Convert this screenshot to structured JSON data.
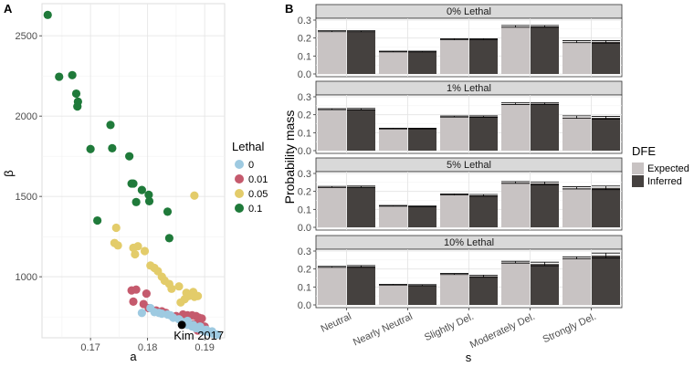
{
  "chart_data": [
    {
      "panel_label": "A",
      "type": "scatter",
      "xlabel": "a",
      "ylabel": "β",
      "xlim": [
        0.1615,
        0.1935
      ],
      "ylim": [
        620,
        2700
      ],
      "x_ticks": [
        0.17,
        0.18,
        0.19
      ],
      "x_tick_labels": [
        "0.17",
        "0.18",
        "0.19"
      ],
      "y_ticks": [
        1000,
        1500,
        2000,
        2500
      ],
      "y_tick_labels": [
        "1000",
        "1500",
        "2000",
        "2500"
      ],
      "grid": true,
      "legend": {
        "title": "Lethal",
        "placement": "right",
        "entries": [
          {
            "label": "0",
            "color": "#9ecae1"
          },
          {
            "label": "0.01",
            "color": "#c55a6d"
          },
          {
            "label": "0.05",
            "color": "#e3cc6a"
          },
          {
            "label": "0.1",
            "color": "#1f7a3a"
          }
        ]
      },
      "series": [
        {
          "name": "0.1",
          "color": "#1f7a3a",
          "points": [
            [
              0.1625,
              2630
            ],
            [
              0.1645,
              2245
            ],
            [
              0.1668,
              2255
            ],
            [
              0.1675,
              2140
            ],
            [
              0.1678,
              2090
            ],
            [
              0.1677,
              2060
            ],
            [
              0.17,
              1795
            ],
            [
              0.1735,
              1945
            ],
            [
              0.1738,
              1800
            ],
            [
              0.1768,
              1750
            ],
            [
              0.1772,
              1580
            ],
            [
              0.1775,
              1580
            ],
            [
              0.178,
              1465
            ],
            [
              0.179,
              1540
            ],
            [
              0.1802,
              1510
            ],
            [
              0.1803,
              1470
            ],
            [
              0.1835,
              1405
            ],
            [
              0.1838,
              1240
            ],
            [
              0.1712,
              1350
            ]
          ]
        },
        {
          "name": "0.05",
          "color": "#e3cc6a",
          "points": [
            [
              0.1745,
              1305
            ],
            [
              0.1742,
              1210
            ],
            [
              0.1748,
              1195
            ],
            [
              0.1775,
              1180
            ],
            [
              0.1783,
              1190
            ],
            [
              0.1778,
              1140
            ],
            [
              0.1795,
              1160
            ],
            [
              0.1805,
              1070
            ],
            [
              0.1812,
              1055
            ],
            [
              0.1818,
              1035
            ],
            [
              0.1825,
              1000
            ],
            [
              0.183,
              975
            ],
            [
              0.1838,
              955
            ],
            [
              0.1842,
              925
            ],
            [
              0.1855,
              940
            ],
            [
              0.1868,
              900
            ],
            [
              0.1872,
              880
            ],
            [
              0.188,
              905
            ],
            [
              0.1882,
              875
            ],
            [
              0.1888,
              880
            ],
            [
              0.1865,
              860
            ],
            [
              0.1858,
              840
            ],
            [
              0.1882,
              1505
            ]
          ]
        },
        {
          "name": "0.01",
          "color": "#c55a6d",
          "points": [
            [
              0.1772,
              915
            ],
            [
              0.178,
              920
            ],
            [
              0.1775,
              845
            ],
            [
              0.1793,
              830
            ],
            [
              0.1798,
              895
            ],
            [
              0.1802,
              805
            ],
            [
              0.1815,
              790
            ],
            [
              0.1825,
              785
            ],
            [
              0.1832,
              775
            ],
            [
              0.185,
              755
            ],
            [
              0.1862,
              765
            ],
            [
              0.187,
              760
            ],
            [
              0.1878,
              760
            ],
            [
              0.1885,
              755
            ],
            [
              0.189,
              745
            ],
            [
              0.1895,
              740
            ],
            [
              0.1888,
              710
            ],
            [
              0.188,
              705
            ],
            [
              0.1892,
              705
            ],
            [
              0.1885,
              690
            ],
            [
              0.19,
              690
            ],
            [
              0.1898,
              670
            ],
            [
              0.1888,
              665
            ],
            [
              0.1895,
              680
            ]
          ]
        },
        {
          "name": "0",
          "color": "#9ecae1",
          "points": [
            [
              0.179,
              775
            ],
            [
              0.1805,
              805
            ],
            [
              0.1812,
              780
            ],
            [
              0.182,
              775
            ],
            [
              0.1825,
              770
            ],
            [
              0.1835,
              765
            ],
            [
              0.184,
              760
            ],
            [
              0.1845,
              745
            ],
            [
              0.1855,
              735
            ],
            [
              0.186,
              720
            ],
            [
              0.1865,
              710
            ],
            [
              0.187,
              700
            ],
            [
              0.1878,
              690
            ],
            [
              0.1885,
              680
            ],
            [
              0.1893,
              670
            ],
            [
              0.19,
              660
            ],
            [
              0.1908,
              655
            ],
            [
              0.1915,
              645
            ],
            [
              0.1922,
              640
            ],
            [
              0.188,
              700
            ],
            [
              0.1892,
              690
            ],
            [
              0.187,
              725
            ],
            [
              0.1903,
              670
            ],
            [
              0.1913,
              660
            ]
          ]
        }
      ],
      "annotation": {
        "label": "Kim 2017",
        "x": 0.186,
        "y": 700
      }
    },
    {
      "panel_label": "B",
      "type": "bar",
      "xlabel": "s",
      "ylabel": "Probability mass",
      "categories": [
        "Neutral",
        "Nearly Neutral",
        "Slightly Del.",
        "Moderately Del.",
        "Strongly Del."
      ],
      "ylim": [
        0,
        0.3
      ],
      "y_ticks": [
        0.0,
        0.1,
        0.2,
        0.3
      ],
      "y_tick_labels": [
        "0.0",
        "0.1",
        "0.2",
        "0.3"
      ],
      "legend": {
        "title": "DFE",
        "placement": "right",
        "entries": [
          {
            "label": "Expected",
            "color": "#c8c3c3"
          },
          {
            "label": "Inferred",
            "color": "#45413f"
          }
        ]
      },
      "facets": [
        {
          "title": "0% Lethal",
          "expected": [
            0.238,
            0.125,
            0.193,
            0.265,
            0.18
          ],
          "inferred": [
            0.238,
            0.125,
            0.193,
            0.265,
            0.179
          ],
          "expected_err": [
            0.003,
            0.002,
            0.003,
            0.005,
            0.006
          ],
          "inferred_err": [
            0.003,
            0.002,
            0.003,
            0.005,
            0.007
          ]
        },
        {
          "title": "1% Lethal",
          "expected": [
            0.231,
            0.123,
            0.19,
            0.262,
            0.187
          ],
          "inferred": [
            0.231,
            0.123,
            0.19,
            0.262,
            0.183
          ],
          "expected_err": [
            0.003,
            0.002,
            0.003,
            0.005,
            0.007
          ],
          "inferred_err": [
            0.004,
            0.002,
            0.004,
            0.005,
            0.008
          ]
        },
        {
          "title": "5% Lethal",
          "expected": [
            0.225,
            0.12,
            0.183,
            0.25,
            0.22
          ],
          "inferred": [
            0.226,
            0.117,
            0.178,
            0.245,
            0.22
          ],
          "expected_err": [
            0.003,
            0.002,
            0.003,
            0.005,
            0.006
          ],
          "inferred_err": [
            0.004,
            0.002,
            0.005,
            0.008,
            0.01
          ]
        },
        {
          "title": "10% Lethal",
          "expected": [
            0.212,
            0.113,
            0.172,
            0.238,
            0.262
          ],
          "inferred": [
            0.214,
            0.11,
            0.16,
            0.228,
            0.275
          ],
          "expected_err": [
            0.003,
            0.002,
            0.003,
            0.005,
            0.006
          ],
          "inferred_err": [
            0.005,
            0.003,
            0.006,
            0.01,
            0.014
          ]
        }
      ]
    }
  ]
}
